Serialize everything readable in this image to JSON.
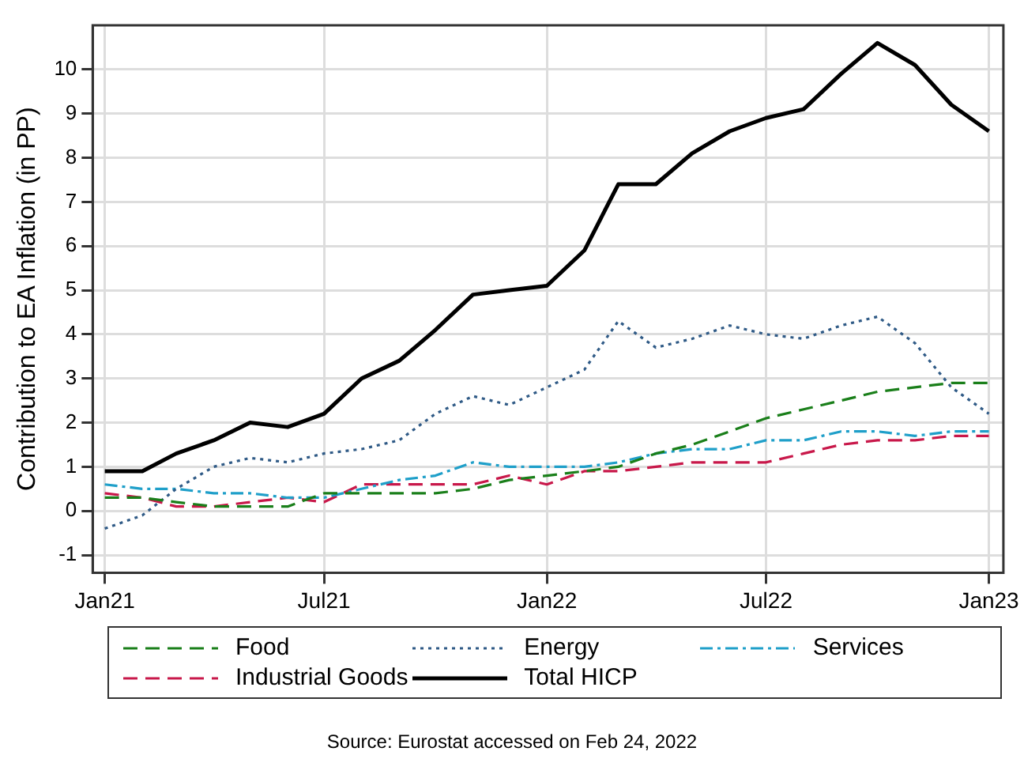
{
  "chart_data": {
    "type": "line",
    "ylabel": "Contribution to EA Inflation (in PP)",
    "x": [
      "2021-01",
      "2021-02",
      "2021-03",
      "2021-04",
      "2021-05",
      "2021-06",
      "2021-07",
      "2021-08",
      "2021-09",
      "2021-10",
      "2021-11",
      "2021-12",
      "2022-01",
      "2022-02",
      "2022-03",
      "2022-04",
      "2022-05",
      "2022-06",
      "2022-07",
      "2022-08",
      "2022-09",
      "2022-10",
      "2022-11",
      "2022-12",
      "2023-01"
    ],
    "xlim": [
      "2020-12-22",
      "2023-01-13"
    ],
    "xticks": [
      {
        "value": "2021-01",
        "label": "Jan21"
      },
      {
        "value": "2021-07",
        "label": "Jul21"
      },
      {
        "value": "2022-01",
        "label": "Jan22"
      },
      {
        "value": "2022-07",
        "label": "Jul22"
      },
      {
        "value": "2023-01",
        "label": "Jan23"
      }
    ],
    "ylim": [
      -1.4,
      11
    ],
    "yticks": [
      {
        "value": -1,
        "label": "-1"
      },
      0,
      1,
      2,
      3,
      4,
      5,
      6,
      7,
      8,
      9,
      10
    ],
    "series": [
      {
        "name": "Food",
        "color": "#1a7f1a",
        "line_style": "dashed",
        "values": [
          0.3,
          0.3,
          0.2,
          0.1,
          0.1,
          0.1,
          0.4,
          0.4,
          0.4,
          0.4,
          0.5,
          0.7,
          0.8,
          0.9,
          1.0,
          1.3,
          1.5,
          1.8,
          2.1,
          2.3,
          2.5,
          2.7,
          2.8,
          2.9,
          2.9
        ]
      },
      {
        "name": "Energy",
        "color": "#2f5a86",
        "line_style": "dotted",
        "values": [
          -0.4,
          -0.1,
          0.5,
          1.0,
          1.2,
          1.1,
          1.3,
          1.4,
          1.6,
          2.2,
          2.6,
          2.4,
          2.8,
          3.2,
          4.3,
          3.7,
          3.9,
          4.2,
          4.0,
          3.9,
          4.2,
          4.4,
          3.8,
          2.8,
          2.2
        ]
      },
      {
        "name": "Services",
        "color": "#1f9fc9",
        "line_style": "dashdot",
        "values": [
          0.6,
          0.5,
          0.5,
          0.4,
          0.4,
          0.3,
          0.3,
          0.5,
          0.7,
          0.8,
          1.1,
          1.0,
          1.0,
          1.0,
          1.1,
          1.3,
          1.4,
          1.4,
          1.6,
          1.6,
          1.8,
          1.8,
          1.7,
          1.8,
          1.8
        ]
      },
      {
        "name": "Industrial Goods",
        "color": "#c8184a",
        "line_style": "dashed",
        "values": [
          0.4,
          0.3,
          0.1,
          0.1,
          0.2,
          0.3,
          0.2,
          0.6,
          0.6,
          0.6,
          0.6,
          0.8,
          0.6,
          0.9,
          0.9,
          1.0,
          1.1,
          1.1,
          1.1,
          1.3,
          1.5,
          1.6,
          1.6,
          1.7,
          1.7
        ]
      },
      {
        "name": "Total HICP",
        "color": "#000000",
        "line_style": "solid",
        "values": [
          0.9,
          0.9,
          1.3,
          1.6,
          2.0,
          1.9,
          2.2,
          3.0,
          3.4,
          4.1,
          4.9,
          5.0,
          5.1,
          5.9,
          7.4,
          7.4,
          8.1,
          8.6,
          8.9,
          9.1,
          9.9,
          10.6,
          10.1,
          9.2,
          8.6
        ]
      }
    ],
    "grid": true,
    "legend": "bottom",
    "marker": "none",
    "annotations": [
      "Source: Eurostat accessed on Feb 24, 2022"
    ]
  }
}
